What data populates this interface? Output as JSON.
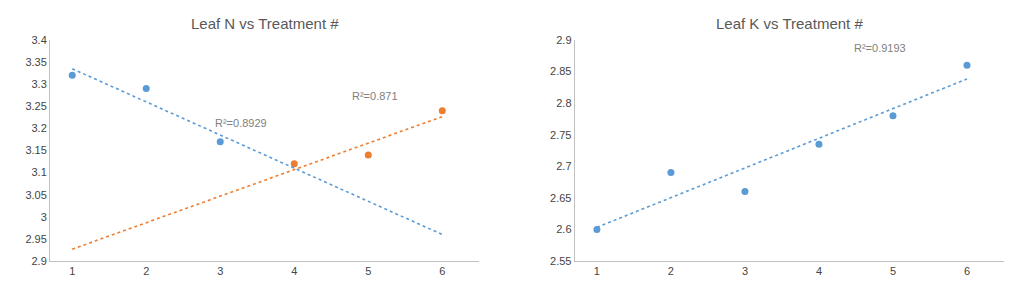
{
  "chart_data": [
    {
      "type": "scatter",
      "title": "Leaf N vs Treatment #",
      "xlim": [
        0.7,
        6.5
      ],
      "xticks": [
        1,
        2,
        3,
        4,
        5,
        6
      ],
      "ylim": [
        2.9,
        3.4
      ],
      "yticks": [
        2.9,
        2.95,
        3,
        3.05,
        3.1,
        3.15,
        3.2,
        3.25,
        3.3,
        3.35,
        3.4
      ],
      "grid": false,
      "series": [
        {
          "type": "scatter",
          "marker": "circle",
          "color": "#5B9BD5",
          "x": [
            1,
            2,
            3
          ],
          "values": [
            3.32,
            3.29,
            3.17
          ]
        },
        {
          "type": "scatter",
          "marker": "circle",
          "color": "#ED7D31",
          "x": [
            4,
            5,
            6
          ],
          "values": [
            3.12,
            3.14,
            3.24
          ]
        },
        {
          "type": "line",
          "line_style": "dotted",
          "color": "#5B9BD5",
          "x": [
            1,
            6
          ],
          "values": [
            3.335,
            2.96
          ]
        },
        {
          "type": "line",
          "line_style": "dotted",
          "color": "#ED7D31",
          "x": [
            1,
            6
          ],
          "values": [
            2.926667,
            3.226667
          ]
        }
      ],
      "annotations": [
        {
          "text": "R²=0.8929",
          "x": 2.9,
          "y": 3.195
        },
        {
          "text": "R²=0.871",
          "x": 4.75,
          "y": 3.255
        }
      ]
    },
    {
      "type": "scatter",
      "title": "Leaf K vs Treatment #",
      "xlim": [
        0.7,
        6.5
      ],
      "xticks": [
        1,
        2,
        3,
        4,
        5,
        6
      ],
      "ylim": [
        2.55,
        2.9
      ],
      "yticks": [
        2.55,
        2.6,
        2.65,
        2.7,
        2.75,
        2.8,
        2.85,
        2.9
      ],
      "grid": false,
      "series": [
        {
          "type": "scatter",
          "marker": "circle",
          "color": "#5B9BD5",
          "x": [
            1,
            2,
            3,
            4,
            5,
            6
          ],
          "values": [
            2.6,
            2.69,
            2.66,
            2.735,
            2.78,
            2.86
          ]
        },
        {
          "type": "line",
          "line_style": "dotted",
          "color": "#5B9BD5",
          "x": [
            1,
            6
          ],
          "values": [
            2.603333,
            2.838333
          ]
        }
      ],
      "annotations": [
        {
          "text": "R²=0.9193",
          "x": 4.45,
          "y": 2.875
        }
      ]
    }
  ]
}
